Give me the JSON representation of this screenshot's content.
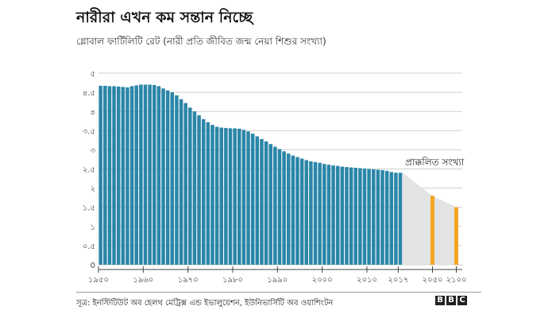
{
  "title": "নারীরা এখন কম সন্তান নিচ্ছে",
  "subtitle": "গ্লোবাল ফার্টিলিটি রেট (নারী প্রতি জীবিত জন্ম নেয়া শিশুর সংখ্যা)",
  "source": "সূত্র: ইনস্টিটিউট অব হেলথ মেট্রিক্স এন্ড ইভালুয়েশন, ইউনিভার্সিটি অব ওয়াশিংটন",
  "brand_letters": [
    "B",
    "B",
    "C"
  ],
  "colors": {
    "historical": "#2b86a8",
    "projected": "#f5a524",
    "projection_band": "#e3e3e3",
    "grid": "#cfcfcf"
  },
  "chart_data": {
    "type": "bar",
    "ylim": [
      0,
      5
    ],
    "grid": true,
    "y_ticks": [
      {
        "value": 0,
        "label": "0"
      },
      {
        "value": 0.5,
        "label": "০.৫"
      },
      {
        "value": 1,
        "label": "১"
      },
      {
        "value": 1.5,
        "label": "১.৫"
      },
      {
        "value": 2,
        "label": "২"
      },
      {
        "value": 2.5,
        "label": "২.৫"
      },
      {
        "value": 3,
        "label": "৩"
      },
      {
        "value": 3.5,
        "label": "৩.৫"
      },
      {
        "value": 4,
        "label": "৪"
      },
      {
        "value": 4.5,
        "label": "৪.৫"
      },
      {
        "value": 5,
        "label": "৫"
      }
    ],
    "x_range": [
      1950,
      2100
    ],
    "x_ticks": [
      {
        "value": 1950,
        "label": "১৯৫০"
      },
      {
        "value": 1960,
        "label": "১৯৬০"
      },
      {
        "value": 1970,
        "label": "১৯৭০"
      },
      {
        "value": 1980,
        "label": "১৯৮০"
      },
      {
        "value": 1990,
        "label": "১৯৯০"
      },
      {
        "value": 2000,
        "label": "২০০০"
      },
      {
        "value": 2010,
        "label": "২০১০"
      },
      {
        "value": 2017,
        "label": "২০১৭"
      },
      {
        "value": 2050,
        "label": "২০৫০"
      },
      {
        "value": 2100,
        "label": "২১০০"
      }
    ],
    "historical": {
      "x": [
        1950,
        1951,
        1952,
        1953,
        1954,
        1955,
        1956,
        1957,
        1958,
        1959,
        1960,
        1961,
        1962,
        1963,
        1964,
        1965,
        1966,
        1967,
        1968,
        1969,
        1970,
        1971,
        1972,
        1973,
        1974,
        1975,
        1976,
        1977,
        1978,
        1979,
        1980,
        1981,
        1982,
        1983,
        1984,
        1985,
        1986,
        1987,
        1988,
        1989,
        1990,
        1991,
        1992,
        1993,
        1994,
        1995,
        1996,
        1997,
        1998,
        1999,
        2000,
        2001,
        2002,
        2003,
        2004,
        2005,
        2006,
        2007,
        2008,
        2009,
        2010,
        2011,
        2012,
        2013,
        2014,
        2015,
        2016,
        2017
      ],
      "values": [
        4.67,
        4.67,
        4.66,
        4.66,
        4.65,
        4.64,
        4.63,
        4.66,
        4.68,
        4.7,
        4.7,
        4.7,
        4.69,
        4.66,
        4.6,
        4.55,
        4.5,
        4.42,
        4.32,
        4.22,
        4.1,
        4.0,
        3.9,
        3.8,
        3.72,
        3.65,
        3.6,
        3.58,
        3.57,
        3.56,
        3.56,
        3.55,
        3.52,
        3.48,
        3.42,
        3.35,
        3.28,
        3.22,
        3.15,
        3.08,
        3.02,
        2.96,
        2.9,
        2.85,
        2.81,
        2.77,
        2.73,
        2.7,
        2.68,
        2.66,
        2.63,
        2.61,
        2.59,
        2.58,
        2.56,
        2.55,
        2.54,
        2.53,
        2.52,
        2.51,
        2.5,
        2.49,
        2.48,
        2.47,
        2.45,
        2.42,
        2.4,
        2.4
      ]
    },
    "projected": {
      "x": [
        2050,
        2100
      ],
      "values": [
        1.8,
        1.5
      ]
    },
    "annotation": "প্রাক্কলিত সংখ্যা"
  }
}
